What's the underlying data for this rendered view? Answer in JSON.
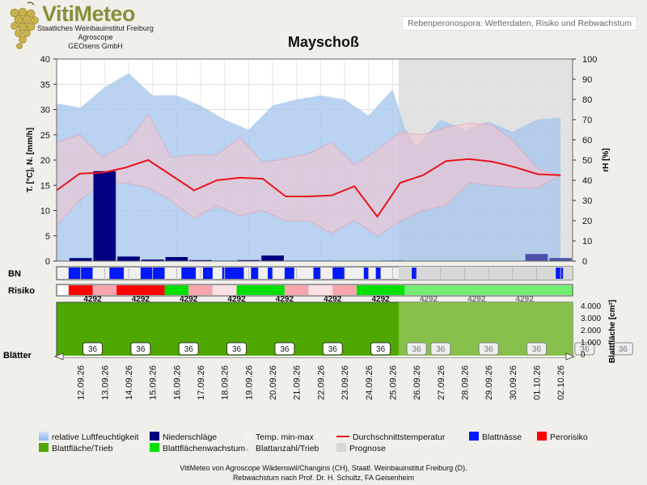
{
  "header": {
    "logo_title": "VitiMeteo",
    "logo_lines": [
      "Staatliches Weinbauinstitut Freiburg",
      "Agroscope",
      "GEOsens GmbH"
    ],
    "subtitle": "Rebenperonospora: Wetterdaten, Risiko und Rebwachstum",
    "title": "Mayschoß"
  },
  "colors": {
    "humidity": "#a8c8ee",
    "precip": "#000080",
    "temp_range": "#f4c6cf",
    "avg_temp": "#e8141e",
    "leaf_wet": "#0018ff",
    "risk": "#ff0000",
    "leaf_area": "#4ea800",
    "leaf_growth": "#00e000",
    "forecast": "#d8d8d8"
  },
  "chart_data": {
    "type": "line",
    "dates": [
      "12.09.26",
      "13.09.26",
      "14.09.26",
      "15.09.26",
      "16.09.26",
      "17.09.26",
      "18.09.26",
      "19.09.26",
      "20.09.26",
      "21.09.26",
      "22.09.26",
      "23.09.26",
      "24.09.26",
      "25.09.26",
      "26.09.26",
      "27.09.26",
      "28.09.26",
      "29.09.26",
      "30.09.26",
      "01.10.26",
      "02.10.26"
    ],
    "x_daily_points": [
      "11.09.26",
      "11.5",
      "12.09.26",
      "12.5",
      "13.09.26",
      "13.5",
      "14.09.26",
      "14.5",
      "15.09.26",
      "15.5",
      "16.09.26",
      "16.5",
      "17.09.26",
      "17.5",
      "18.09.26",
      "18.5",
      "19.09.26",
      "19.5",
      "20.09.26",
      "20.5",
      "21.09.26",
      "21.5",
      "22.09.26",
      "22.5",
      "23.09.26",
      "23.5",
      "24.09.26",
      "24.5",
      "25.09.26",
      "25.5",
      "26.09.26",
      "26.5",
      "27.09.26",
      "27.5",
      "28.09.26",
      "28.5",
      "29.09.26",
      "29.5",
      "30.09.26",
      "30.5",
      "01.10.26",
      "01.5",
      "02.10.26"
    ],
    "left_axis": {
      "label": "T. [°C], N. [mm/h]",
      "ylim": [
        0,
        40
      ],
      "ticks": [
        0,
        5,
        10,
        15,
        20,
        25,
        30,
        35,
        40
      ]
    },
    "right_axis": {
      "label": "rH [%]",
      "ylim": [
        0,
        100
      ],
      "ticks": [
        0,
        10,
        20,
        30,
        40,
        50,
        60,
        70,
        80,
        90,
        100
      ]
    },
    "leaf_axis": {
      "label": "Blattfläche [cm²]",
      "ticks": [
        "0",
        "1.000",
        "2.000",
        "3.000",
        "4.000"
      ]
    },
    "grid": true,
    "humidity": {
      "x": [
        11,
        12,
        13,
        14,
        15,
        16,
        17,
        18,
        19,
        20,
        21,
        22,
        23,
        24,
        25,
        25.5,
        26,
        27,
        28,
        29,
        30,
        31,
        32
      ],
      "values": [
        78,
        76,
        86,
        93,
        82,
        82,
        77,
        70,
        65,
        77,
        80,
        82,
        80,
        72,
        85,
        66,
        57,
        70,
        65,
        69,
        64,
        70,
        71
      ]
    },
    "temp_max": [
      23.5,
      25,
      20.5,
      23,
      29,
      20.5,
      21,
      21,
      24.5,
      19.5,
      20.3,
      21.2,
      23.5,
      19,
      22,
      25.5,
      25,
      26.5,
      27.3,
      27,
      23.5,
      18.2,
      17
    ],
    "temp_min": [
      7,
      12,
      15.5,
      15.5,
      14.5,
      12,
      8.5,
      11,
      9,
      10,
      8,
      8,
      5.5,
      8,
      5,
      8,
      10,
      11,
      15.5,
      15,
      14.5,
      14.5,
      17
    ],
    "temp_avg": [
      14,
      17.3,
      17.5,
      18.5,
      20,
      17,
      14,
      16,
      16.5,
      16.3,
      12.8,
      12.8,
      13,
      14.8,
      8.8,
      15.5,
      17,
      19.8,
      20.2,
      19.7,
      18.6,
      17.2,
      17
    ],
    "precip": [
      0.6,
      17.8,
      0.9,
      0.3,
      0.8,
      0.2,
      0.1,
      0.2,
      1.1,
      0.1,
      0.1,
      0,
      0,
      0.1,
      0,
      0,
      0,
      0,
      0,
      1.4,
      0.6
    ],
    "forecast_start": "25.09.26",
    "leaf_wetness_blocks": [
      [
        11,
        12
      ],
      [
        12.7,
        13.3
      ],
      [
        14,
        15
      ],
      [
        15.7,
        16.3
      ],
      [
        16.6,
        17
      ],
      [
        17.4,
        18.3
      ],
      [
        18.6,
        18.9
      ],
      [
        19.3,
        19.5
      ],
      [
        20,
        20.4
      ],
      [
        21.2,
        21.5
      ],
      [
        22,
        22.5
      ],
      [
        23.3,
        23.5
      ],
      [
        23.8,
        24
      ],
      [
        25.3,
        25.5
      ],
      [
        31.3,
        31.6
      ]
    ],
    "risk_blocks": [
      {
        "from": 11.5,
        "to": 12.5,
        "level": "high"
      },
      {
        "from": 12.5,
        "to": 13.5,
        "level": "low"
      },
      {
        "from": 13.5,
        "to": 15.5,
        "level": "high"
      },
      {
        "from": 15.5,
        "to": 16.5,
        "level": "growth"
      },
      {
        "from": 16.5,
        "to": 17.5,
        "level": "low"
      },
      {
        "from": 17.5,
        "to": 18.5,
        "level": "lighter"
      },
      {
        "from": 18.5,
        "to": 20.5,
        "level": "growth"
      },
      {
        "from": 20.5,
        "to": 21.5,
        "level": "low"
      },
      {
        "from": 21.5,
        "to": 22.5,
        "level": "lighter"
      },
      {
        "from": 22.5,
        "to": 23.5,
        "level": "low"
      },
      {
        "from": 23.5,
        "to": 25.5,
        "level": "growth"
      },
      {
        "from": 25.5,
        "to": 32.5,
        "level": "growth"
      }
    ],
    "leaf_count_labels": [
      "4292",
      "4292",
      "4292",
      "4292",
      "4292",
      "4292",
      "4292",
      "4292",
      "4292",
      "4292"
    ],
    "leaves_per_shoot": [
      "36",
      "36",
      "36",
      "36",
      "36",
      "36",
      "36",
      "36",
      "36",
      "36",
      "36",
      "36",
      "36"
    ],
    "leaf_area_value": 4292
  },
  "row_labels": {
    "bn": "BN",
    "risk": "Risiko",
    "leaves": "Blätter"
  },
  "legend": [
    {
      "label": "relative Luftfeuchtigkeit",
      "swatch": "humidity"
    },
    {
      "label": "Niederschläge",
      "swatch": "precip"
    },
    {
      "label": "Temp. min-max",
      "swatch": "temp_range"
    },
    {
      "label": "Durchschnittstemperatur",
      "swatch": "avg_temp"
    },
    {
      "label": "Blattnässe",
      "swatch": "leaf_wet"
    },
    {
      "label": "Perorisiko",
      "swatch": "risk"
    },
    {
      "label": "Blattfläche/Trieb",
      "swatch": "leaf_area"
    },
    {
      "label": "Blattflächenwachstum",
      "swatch": "leaf_growth"
    },
    {
      "label": "Blattanzahl/Trieb",
      "swatch": "dot"
    },
    {
      "label": "Prognose",
      "swatch": "forecast"
    }
  ],
  "footer": {
    "line1": "VitiMeteo von Agroscope Wädenswil/Changins (CH), Staatl. Weinbauinstitut Freiburg (D).",
    "line2": "Rebwachstum nach Prof. Dr. H. Schultz, FA Geisenheim"
  }
}
